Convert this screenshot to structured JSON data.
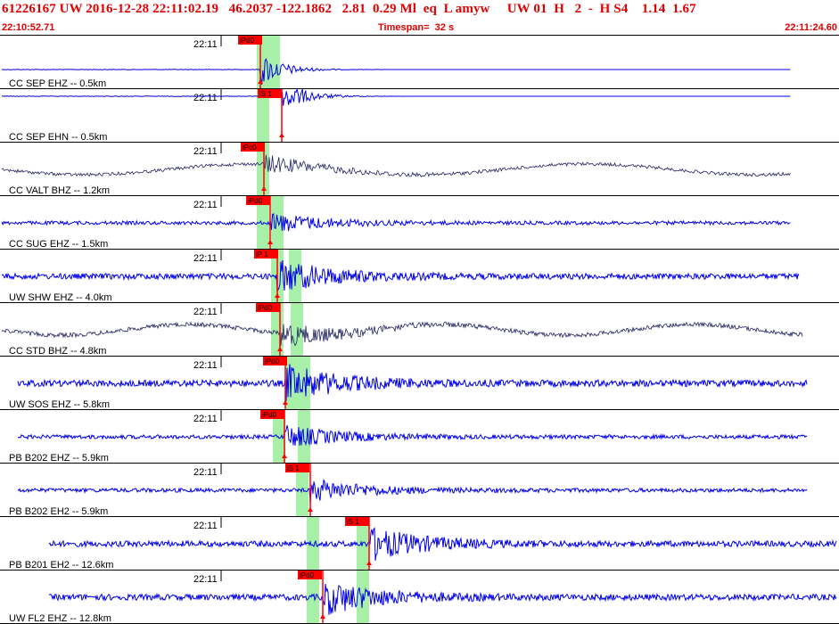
{
  "header": {
    "event_line": "61226167 UW 2016-12-28 22:11:02.19   46.2037 -122.1862   2.81  0.29 Ml  eq  L amyw     UW 01  H   2  -  H S4    1.14  1.67",
    "start_time": "22:10:52.71",
    "timespan": "Timespan=  32 s",
    "end_time": "22:11:24.60"
  },
  "time_tick_label": "22:11",
  "colors": {
    "trace_blue": "#0000e6",
    "trace_dark": "#202060",
    "pick_red": "#ff0000",
    "window_green": "#a8f0a8",
    "header_red": "#e00000"
  },
  "channels": [
    {
      "label": "CC SEP EHZ -- 0.5km",
      "color": "blue",
      "amp": 0.35,
      "picks": [
        {
          "label": "iPd0"
        }
      ],
      "windows": 2
    },
    {
      "label": "CC SEP EHN -- 0.5km",
      "color": "blue",
      "amp": 0.35,
      "picks": [
        {
          "label": "iS 1"
        }
      ],
      "windows": 1
    },
    {
      "label": "CC VALT BHZ -- 1.2km",
      "color": "dark",
      "amp": 0.45,
      "picks": [
        {
          "label": "iPc0"
        }
      ],
      "windows": 1
    },
    {
      "label": "CC SUG EHZ -- 1.5km",
      "color": "blue",
      "amp": 0.5,
      "picks": [
        {
          "label": "iPd0"
        }
      ],
      "windows": 2
    },
    {
      "label": "UW SHW EHZ -- 4.0km",
      "color": "blue",
      "amp": 0.8,
      "picks": [
        {
          "label": "iP 1"
        }
      ],
      "windows": 2
    },
    {
      "label": "CC STD BHZ -- 4.8km",
      "color": "dark",
      "amp": 0.6,
      "picks": [
        {
          "label": "iPd0"
        }
      ],
      "windows": 2
    },
    {
      "label": "UW SOS EHZ -- 5.8km",
      "color": "blue",
      "amp": 0.9,
      "picks": [
        {
          "label": "iPd0"
        }
      ],
      "windows": 2
    },
    {
      "label": "PB B202 EHZ -- 5.9km",
      "color": "blue",
      "amp": 0.55,
      "picks": [
        {
          "label": "iPd0"
        }
      ],
      "windows": 2
    },
    {
      "label": "PB B202 EH2 -- 5.9km",
      "color": "blue",
      "amp": 0.55,
      "picks": [
        {
          "label": "iS 1"
        }
      ],
      "windows": 1
    },
    {
      "label": "PB B201 EH2 -- 12.6km",
      "color": "blue",
      "amp": 0.8,
      "picks": [
        {
          "label": "iS 1"
        }
      ],
      "windows": 2
    },
    {
      "label": "UW FL2 EHZ -- 12.8km",
      "color": "blue",
      "amp": 0.85,
      "picks": [
        {
          "label": "iPd0"
        }
      ],
      "windows": 2
    }
  ]
}
